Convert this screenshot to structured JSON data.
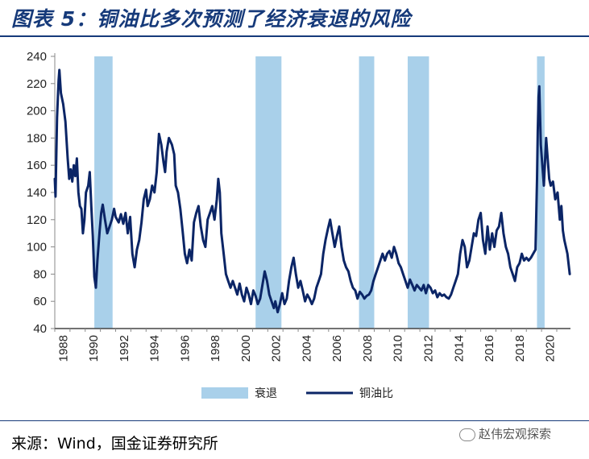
{
  "title": "图表 5：铜油比多次预测了经济衰退的风险",
  "source": "来源：Wind，国金证券研究所",
  "watermark": "赵伟宏观探索",
  "colors": {
    "line": "#0b2566",
    "recession": "#a9d0ea",
    "title": "#163a7a"
  },
  "chart_data": {
    "type": "line",
    "title": "",
    "xlabel": "",
    "ylabel": "",
    "ylim": [
      40,
      240
    ],
    "yticks": [
      40,
      60,
      80,
      100,
      120,
      140,
      160,
      180,
      200,
      220,
      240
    ],
    "xlim": [
      1988.0,
      2021.9
    ],
    "xticks": [
      "1988",
      "1990",
      "1992",
      "1994",
      "1996",
      "1998",
      "2000",
      "2002",
      "2004",
      "2006",
      "2008",
      "2010",
      "2012",
      "2014",
      "2016",
      "2018",
      "2020"
    ],
    "legend": {
      "position": "bottom",
      "entries": [
        "衰退",
        "铜油比"
      ]
    },
    "recessions": [
      [
        1990.6,
        1991.8
      ],
      [
        2001.2,
        2002.9
      ],
      [
        2008.0,
        2009.0
      ],
      [
        2011.2,
        2012.6
      ],
      [
        2019.7,
        2020.2
      ]
    ],
    "series": [
      {
        "name": "铜油比",
        "points": [
          [
            1988.0,
            150
          ],
          [
            1988.05,
            137
          ],
          [
            1988.15,
            195
          ],
          [
            1988.25,
            222
          ],
          [
            1988.3,
            230
          ],
          [
            1988.4,
            213
          ],
          [
            1988.55,
            205
          ],
          [
            1988.7,
            192
          ],
          [
            1988.85,
            165
          ],
          [
            1988.95,
            150
          ],
          [
            1989.05,
            157
          ],
          [
            1989.15,
            148
          ],
          [
            1989.25,
            160
          ],
          [
            1989.35,
            152
          ],
          [
            1989.45,
            165
          ],
          [
            1989.55,
            140
          ],
          [
            1989.65,
            130
          ],
          [
            1989.75,
            128
          ],
          [
            1989.85,
            110
          ],
          [
            1989.95,
            120
          ],
          [
            1990.05,
            140
          ],
          [
            1990.2,
            145
          ],
          [
            1990.3,
            155
          ],
          [
            1990.4,
            130
          ],
          [
            1990.5,
            108
          ],
          [
            1990.6,
            78
          ],
          [
            1990.7,
            70
          ],
          [
            1990.8,
            90
          ],
          [
            1990.95,
            112
          ],
          [
            1991.05,
            125
          ],
          [
            1991.15,
            131
          ],
          [
            1991.3,
            120
          ],
          [
            1991.45,
            110
          ],
          [
            1991.6,
            115
          ],
          [
            1991.75,
            120
          ],
          [
            1991.9,
            128
          ],
          [
            1992.0,
            122
          ],
          [
            1992.2,
            118
          ],
          [
            1992.35,
            124
          ],
          [
            1992.5,
            117
          ],
          [
            1992.65,
            125
          ],
          [
            1992.8,
            110
          ],
          [
            1992.95,
            122
          ],
          [
            1993.1,
            95
          ],
          [
            1993.25,
            85
          ],
          [
            1993.4,
            98
          ],
          [
            1993.55,
            105
          ],
          [
            1993.7,
            118
          ],
          [
            1993.85,
            135
          ],
          [
            1994.0,
            142
          ],
          [
            1994.1,
            130
          ],
          [
            1994.25,
            135
          ],
          [
            1994.4,
            145
          ],
          [
            1994.55,
            140
          ],
          [
            1994.7,
            155
          ],
          [
            1994.85,
            183
          ],
          [
            1995.0,
            175
          ],
          [
            1995.15,
            162
          ],
          [
            1995.25,
            155
          ],
          [
            1995.35,
            170
          ],
          [
            1995.5,
            180
          ],
          [
            1995.7,
            175
          ],
          [
            1995.85,
            168
          ],
          [
            1995.95,
            145
          ],
          [
            1996.1,
            140
          ],
          [
            1996.25,
            128
          ],
          [
            1996.4,
            112
          ],
          [
            1996.55,
            95
          ],
          [
            1996.7,
            88
          ],
          [
            1996.85,
            98
          ],
          [
            1997.0,
            90
          ],
          [
            1997.15,
            118
          ],
          [
            1997.3,
            125
          ],
          [
            1997.45,
            130
          ],
          [
            1997.6,
            115
          ],
          [
            1997.75,
            105
          ],
          [
            1997.9,
            100
          ],
          [
            1998.05,
            120
          ],
          [
            1998.2,
            125
          ],
          [
            1998.35,
            130
          ],
          [
            1998.5,
            120
          ],
          [
            1998.65,
            135
          ],
          [
            1998.75,
            150
          ],
          [
            1998.85,
            140
          ],
          [
            1998.95,
            110
          ],
          [
            1999.1,
            95
          ],
          [
            1999.25,
            80
          ],
          [
            1999.4,
            75
          ],
          [
            1999.55,
            70
          ],
          [
            1999.7,
            75
          ],
          [
            1999.85,
            70
          ],
          [
            2000.0,
            65
          ],
          [
            2000.15,
            73
          ],
          [
            2000.3,
            65
          ],
          [
            2000.45,
            60
          ],
          [
            2000.6,
            70
          ],
          [
            2000.75,
            65
          ],
          [
            2000.9,
            58
          ],
          [
            2001.05,
            68
          ],
          [
            2001.2,
            64
          ],
          [
            2001.35,
            58
          ],
          [
            2001.5,
            62
          ],
          [
            2001.65,
            72
          ],
          [
            2001.8,
            82
          ],
          [
            2001.95,
            75
          ],
          [
            2002.1,
            65
          ],
          [
            2002.25,
            60
          ],
          [
            2002.4,
            55
          ],
          [
            2002.5,
            60
          ],
          [
            2002.65,
            52
          ],
          [
            2002.8,
            58
          ],
          [
            2002.95,
            66
          ],
          [
            2003.1,
            58
          ],
          [
            2003.25,
            62
          ],
          [
            2003.4,
            75
          ],
          [
            2003.55,
            85
          ],
          [
            2003.7,
            92
          ],
          [
            2003.85,
            80
          ],
          [
            2004.0,
            70
          ],
          [
            2004.15,
            75
          ],
          [
            2004.3,
            68
          ],
          [
            2004.45,
            60
          ],
          [
            2004.6,
            65
          ],
          [
            2004.75,
            62
          ],
          [
            2004.9,
            58
          ],
          [
            2005.05,
            62
          ],
          [
            2005.2,
            70
          ],
          [
            2005.35,
            75
          ],
          [
            2005.5,
            80
          ],
          [
            2005.65,
            95
          ],
          [
            2005.8,
            105
          ],
          [
            2005.95,
            113
          ],
          [
            2006.1,
            120
          ],
          [
            2006.25,
            110
          ],
          [
            2006.4,
            100
          ],
          [
            2006.55,
            108
          ],
          [
            2006.7,
            115
          ],
          [
            2006.85,
            100
          ],
          [
            2007.0,
            90
          ],
          [
            2007.15,
            85
          ],
          [
            2007.3,
            82
          ],
          [
            2007.45,
            75
          ],
          [
            2007.6,
            70
          ],
          [
            2007.75,
            68
          ],
          [
            2007.9,
            62
          ],
          [
            2008.05,
            67
          ],
          [
            2008.2,
            65
          ],
          [
            2008.35,
            62
          ],
          [
            2008.5,
            64
          ],
          [
            2008.65,
            65
          ],
          [
            2008.8,
            68
          ],
          [
            2008.95,
            75
          ],
          [
            2009.1,
            80
          ],
          [
            2009.25,
            85
          ],
          [
            2009.4,
            90
          ],
          [
            2009.55,
            95
          ],
          [
            2009.7,
            90
          ],
          [
            2009.85,
            95
          ],
          [
            2010.0,
            97
          ],
          [
            2010.15,
            92
          ],
          [
            2010.3,
            100
          ],
          [
            2010.45,
            95
          ],
          [
            2010.6,
            88
          ],
          [
            2010.75,
            85
          ],
          [
            2010.9,
            80
          ],
          [
            2011.05,
            75
          ],
          [
            2011.2,
            70
          ],
          [
            2011.35,
            76
          ],
          [
            2011.5,
            72
          ],
          [
            2011.65,
            68
          ],
          [
            2011.8,
            72
          ],
          [
            2011.95,
            70
          ],
          [
            2012.1,
            68
          ],
          [
            2012.25,
            72
          ],
          [
            2012.4,
            66
          ],
          [
            2012.55,
            72
          ],
          [
            2012.7,
            70
          ],
          [
            2012.85,
            66
          ],
          [
            2013.0,
            68
          ],
          [
            2013.15,
            63
          ],
          [
            2013.3,
            66
          ],
          [
            2013.45,
            64
          ],
          [
            2013.6,
            65
          ],
          [
            2013.75,
            63
          ],
          [
            2013.9,
            62
          ],
          [
            2014.05,
            65
          ],
          [
            2014.2,
            70
          ],
          [
            2014.35,
            75
          ],
          [
            2014.5,
            80
          ],
          [
            2014.65,
            95
          ],
          [
            2014.8,
            105
          ],
          [
            2014.95,
            100
          ],
          [
            2015.1,
            85
          ],
          [
            2015.25,
            90
          ],
          [
            2015.4,
            100
          ],
          [
            2015.55,
            110
          ],
          [
            2015.7,
            108
          ],
          [
            2015.85,
            120
          ],
          [
            2016.0,
            125
          ],
          [
            2016.15,
            105
          ],
          [
            2016.3,
            95
          ],
          [
            2016.45,
            115
          ],
          [
            2016.6,
            98
          ],
          [
            2016.75,
            110
          ],
          [
            2016.9,
            100
          ],
          [
            2017.05,
            112
          ],
          [
            2017.2,
            115
          ],
          [
            2017.35,
            125
          ],
          [
            2017.5,
            110
          ],
          [
            2017.65,
            100
          ],
          [
            2017.8,
            95
          ],
          [
            2017.95,
            85
          ],
          [
            2018.1,
            80
          ],
          [
            2018.25,
            75
          ],
          [
            2018.4,
            85
          ],
          [
            2018.55,
            88
          ],
          [
            2018.7,
            95
          ],
          [
            2018.85,
            90
          ],
          [
            2019.0,
            92
          ],
          [
            2019.15,
            90
          ],
          [
            2019.3,
            92
          ],
          [
            2019.45,
            95
          ],
          [
            2019.6,
            98
          ],
          [
            2019.7,
            150
          ],
          [
            2019.75,
            185
          ],
          [
            2019.8,
            210
          ],
          [
            2019.85,
            218
          ],
          [
            2019.95,
            175
          ],
          [
            2020.05,
            160
          ],
          [
            2020.15,
            145
          ],
          [
            2020.3,
            180
          ],
          [
            2020.4,
            165
          ],
          [
            2020.5,
            150
          ],
          [
            2020.6,
            145
          ],
          [
            2020.75,
            148
          ],
          [
            2020.9,
            135
          ],
          [
            2021.05,
            140
          ],
          [
            2021.2,
            120
          ],
          [
            2021.3,
            130
          ],
          [
            2021.4,
            112
          ],
          [
            2021.5,
            105
          ],
          [
            2021.6,
            100
          ],
          [
            2021.7,
            95
          ],
          [
            2021.85,
            80
          ]
        ]
      }
    ]
  }
}
